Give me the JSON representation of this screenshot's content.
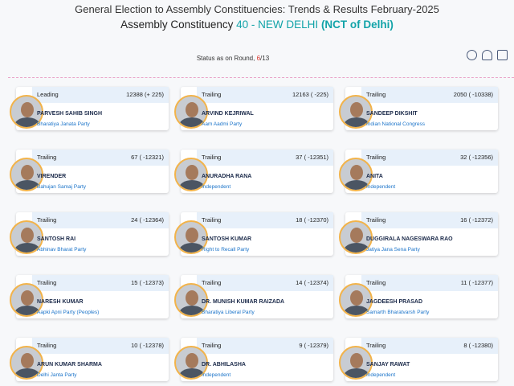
{
  "header": {
    "title": "General Election to Assembly Constituencies: Trends & Results February-2025",
    "subtitle_prefix": "Assembly Constituency",
    "constituency": "40 - NEW DELHI",
    "state": "(NCT of Delhi)",
    "status_label": "Status as on Round,",
    "round": "6",
    "round_total": "/13"
  },
  "candidates": [
    {
      "status": "Leading",
      "votes": "12388 (+ 225)",
      "name": "PARVESH SAHIB SINGH",
      "party": "Bharatiya Janata Party"
    },
    {
      "status": "Trailing",
      "votes": "12163 ( -225)",
      "name": "ARVIND KEJRIWAL",
      "party": "Aam Aadmi Party"
    },
    {
      "status": "Trailing",
      "votes": "2050 ( -10338)",
      "name": "SANDEEP DIKSHIT",
      "party": "Indian National Congress"
    },
    {
      "status": "Trailing",
      "votes": "67 ( -12321)",
      "name": "VIRENDER",
      "party": "Bahujan Samaj Party"
    },
    {
      "status": "Trailing",
      "votes": "37 ( -12351)",
      "name": "ANURADHA RANA",
      "party": "Independent"
    },
    {
      "status": "Trailing",
      "votes": "32 ( -12356)",
      "name": "ANITA",
      "party": "Independent"
    },
    {
      "status": "Trailing",
      "votes": "24 ( -12364)",
      "name": "SANTOSH RAI",
      "party": "Abhinav Bharat Party"
    },
    {
      "status": "Trailing",
      "votes": "18 ( -12370)",
      "name": "SANTOSH KUMAR",
      "party": "Right to Recall Party"
    },
    {
      "status": "Trailing",
      "votes": "16 ( -12372)",
      "name": "DUGGIRALA NAGESWARA RAO",
      "party": "Jatiya Jana Sena Party"
    },
    {
      "status": "Trailing",
      "votes": "15 ( -12373)",
      "name": "NARESH KUMAR",
      "party": "Aapki Apni Party (Peoples)"
    },
    {
      "status": "Trailing",
      "votes": "14 ( -12374)",
      "name": "DR. MUNISH KUMAR RAIZADA",
      "party": "Bharatiya Liberal Party"
    },
    {
      "status": "Trailing",
      "votes": "11 ( -12377)",
      "name": "JAGDEESH PRASAD",
      "party": "Samarth Bharatvarsh Party"
    },
    {
      "status": "Trailing",
      "votes": "10 ( -12378)",
      "name": "ARUN KUMAR SHARMA",
      "party": "Delhi Janta Party"
    },
    {
      "status": "Trailing",
      "votes": "9 ( -12379)",
      "name": "DR. ABHILASHA",
      "party": "Independent"
    },
    {
      "status": "Trailing",
      "votes": "8 ( -12380)",
      "name": "SANJAY RAWAT",
      "party": "Independent"
    }
  ]
}
